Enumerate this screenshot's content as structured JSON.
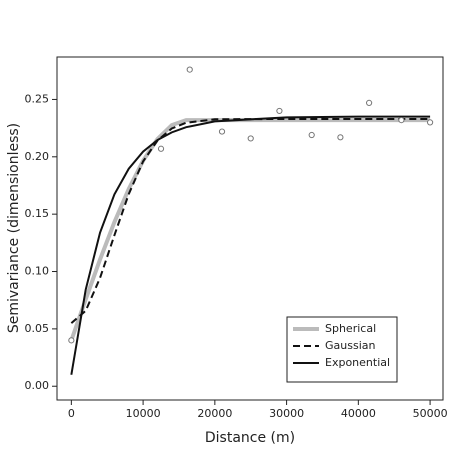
{
  "chart_data": {
    "type": "line",
    "x_label": "Distance (m)",
    "y_label": "Semivariance (dimensionless)",
    "xlim": [
      -2000,
      51800
    ],
    "ylim": [
      -0.012,
      0.287
    ],
    "xticks": [
      0,
      10000,
      20000,
      30000,
      40000,
      50000
    ],
    "yticks": [
      {
        "value": 0,
        "label": "0.00"
      },
      {
        "value": 0.05,
        "label": "0.05"
      },
      {
        "value": 0.1,
        "label": "0.10"
      },
      {
        "value": 0.15,
        "label": "0.15"
      },
      {
        "value": 0.2,
        "label": "0.20"
      },
      {
        "value": 0.25,
        "label": "0.25"
      }
    ],
    "points": {
      "color": "#777777",
      "x": [
        0,
        12500,
        16500,
        21000,
        25000,
        29000,
        33500,
        37500,
        41500,
        46000,
        50000
      ],
      "values": [
        0.04,
        0.207,
        0.276,
        0.222,
        0.216,
        0.24,
        0.219,
        0.217,
        0.247,
        0.232,
        0.23
      ]
    },
    "x": [
      0,
      2000,
      4000,
      6000,
      8000,
      10000,
      12000,
      14000,
      16000,
      20000,
      30000,
      40000,
      50000
    ],
    "series": [
      {
        "name": "Spherical",
        "color": "#bbbbbb",
        "width": 4,
        "dash": "none",
        "values": [
          0.04,
          0.0758,
          0.1105,
          0.143,
          0.172,
          0.1966,
          0.2155,
          0.2276,
          0.232,
          0.232,
          0.232,
          0.232,
          0.232
        ]
      },
      {
        "name": "Gaussian",
        "color": "#111111",
        "width": 2,
        "dash": "7 4",
        "values": [
          0.055,
          0.0658,
          0.0944,
          0.1316,
          0.1675,
          0.196,
          0.2142,
          0.2247,
          0.2297,
          0.2327,
          0.233,
          0.233,
          0.233
        ]
      },
      {
        "name": "Exponential",
        "color": "#111111",
        "width": 2,
        "dash": "none",
        "values": [
          0.01,
          0.0842,
          0.1339,
          0.1672,
          0.1896,
          0.2045,
          0.2146,
          0.2213,
          0.2258,
          0.2309,
          0.2344,
          0.235,
          0.235
        ]
      }
    ],
    "legend": "lower-right"
  }
}
